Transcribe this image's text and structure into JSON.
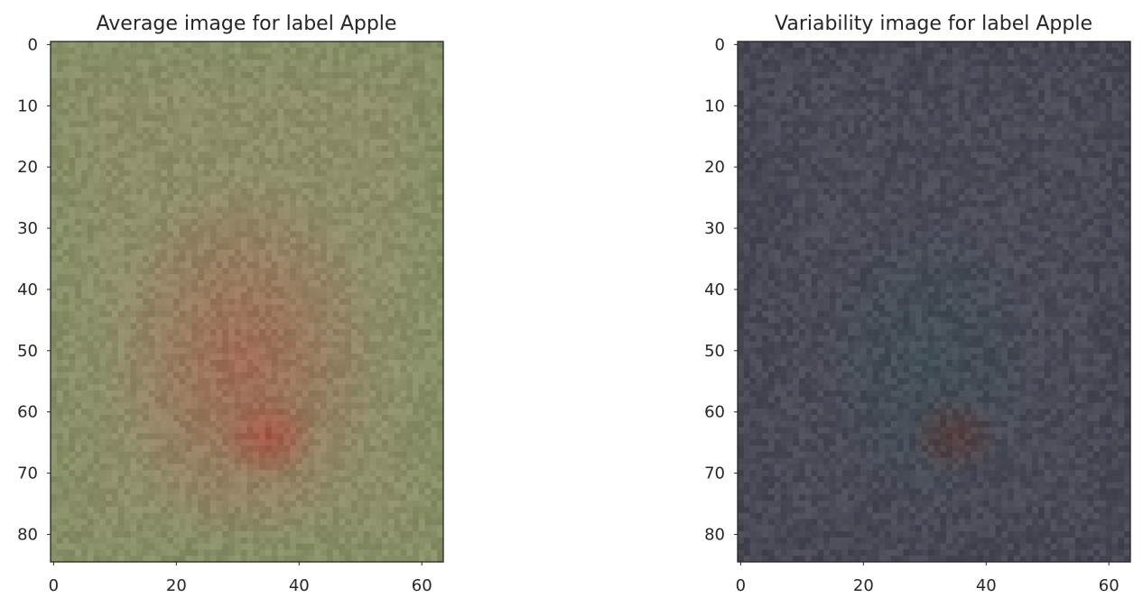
{
  "chart_data": [
    {
      "type": "heatmap",
      "title": "Average image for label Apple",
      "xlabel": "",
      "ylabel": "",
      "image_width": 64,
      "image_height": 85,
      "xlim": [
        -0.5,
        63.5
      ],
      "ylim": [
        84.5,
        -0.5
      ],
      "xticks": [
        0,
        20,
        40,
        60
      ],
      "yticks": [
        0,
        10,
        20,
        30,
        40,
        50,
        60,
        70,
        80
      ],
      "grid": false,
      "colors": {
        "base": "#8e8d6a",
        "edge_tint": "#7f8f63",
        "center_tint": "#a85a4c",
        "hot_spot": "#a84a3c"
      }
    },
    {
      "type": "heatmap",
      "title": "Variability image for label Apple",
      "xlabel": "",
      "ylabel": "",
      "image_width": 64,
      "image_height": 85,
      "xlim": [
        -0.5,
        63.5
      ],
      "ylim": [
        84.5,
        -0.5
      ],
      "xticks": [
        0,
        20,
        40,
        60
      ],
      "yticks": [
        0,
        10,
        20,
        30,
        40,
        50,
        60,
        70,
        80
      ],
      "grid": false,
      "colors": {
        "base": "#4b4a57",
        "edge_tint": "#454552",
        "center_tint": "#3f5156",
        "hot_spot": "#5a3a36"
      }
    }
  ]
}
